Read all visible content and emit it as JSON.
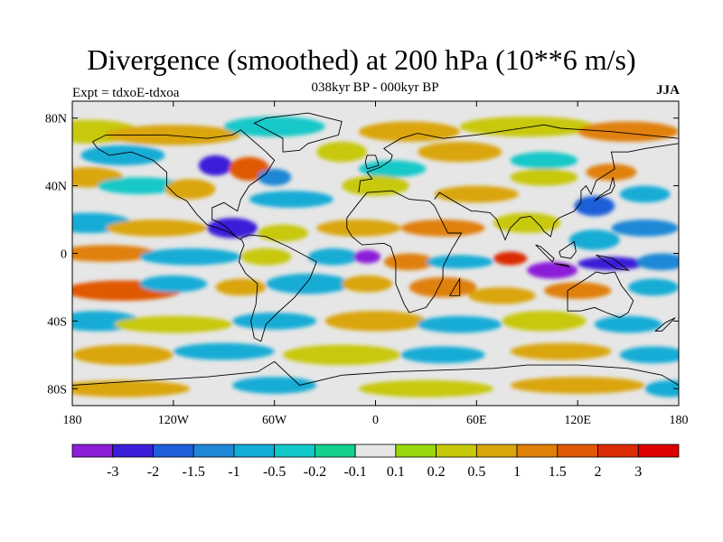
{
  "title": "Divergence (smoothed) at 200 hPa (10**6 m/s)",
  "subtitle": "038kyr BP - 000kyr BP",
  "experiment": "Expt = tdxoE-tdxoa",
  "season": "JJA",
  "map": {
    "projection": "cylindrical-equidistant",
    "lon_range": [
      -180,
      180
    ],
    "lat_range": [
      -90,
      90
    ],
    "lat_ticks": [
      {
        "value": 80,
        "label": "80N"
      },
      {
        "value": 40,
        "label": "40N"
      },
      {
        "value": 0,
        "label": "0"
      },
      {
        "value": -40,
        "label": "40S"
      },
      {
        "value": -80,
        "label": "80S"
      }
    ],
    "lon_ticks": [
      {
        "value": -180,
        "label": "180"
      },
      {
        "value": -120,
        "label": "120W"
      },
      {
        "value": -60,
        "label": "60W"
      },
      {
        "value": 0,
        "label": "0"
      },
      {
        "value": 60,
        "label": "60E"
      },
      {
        "value": 120,
        "label": "120E"
      },
      {
        "value": 180,
        "label": "180"
      }
    ],
    "background_color": "#e6e6e6",
    "coastline_color": "#000000"
  },
  "colorbar": {
    "colors": [
      "#8c1ed9",
      "#3a1ed9",
      "#1c5fd9",
      "#1e88d6",
      "#12acd6",
      "#12c8c8",
      "#10d08c",
      "#e6e6e6",
      "#9ad60c",
      "#c8c80a",
      "#daa50a",
      "#e08008",
      "#e05806",
      "#dc2a04",
      "#dc0000"
    ],
    "labels": [
      "-3",
      "-2",
      "-1.5",
      "-1",
      "-0.5",
      "-0.2",
      "-0.1",
      "0.1",
      "0.2",
      "0.5",
      "1",
      "1.5",
      "2",
      "3"
    ]
  }
}
